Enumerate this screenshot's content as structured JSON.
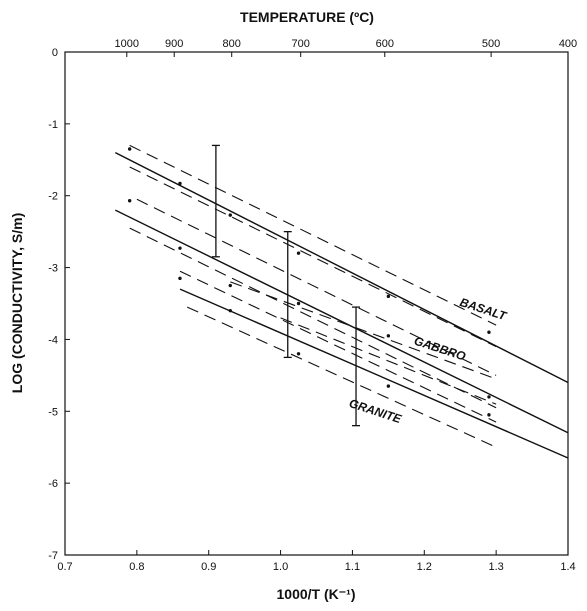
{
  "chart_data": {
    "type": "line",
    "title": "",
    "xlabel": "1000/T (K⁻¹)",
    "ylabel": "LOG (CONDUCTIVITY, S/m)",
    "top_axis_label": "TEMPERATURE (ºC)",
    "xlim": [
      0.7,
      1.4
    ],
    "ylim": [
      -7,
      0
    ],
    "x_ticks": [
      0.7,
      0.8,
      0.9,
      1.0,
      1.1,
      1.2,
      1.3,
      1.4
    ],
    "x_tick_labels": [
      "0.7",
      "0.8",
      "0.9",
      "1.0",
      "1.1",
      "1.2",
      "1.3",
      "1.4"
    ],
    "y_ticks": [
      0,
      -1,
      -2,
      -3,
      -4,
      -5,
      -6,
      -7
    ],
    "y_tick_labels": [
      "0",
      "-1",
      "-2",
      "-3",
      "-4",
      "-5",
      "-6",
      "-7"
    ],
    "top_ticks": [
      {
        "label": "1000",
        "x": 0.786
      },
      {
        "label": "900",
        "x": 0.852
      },
      {
        "label": "800",
        "x": 0.932
      },
      {
        "label": "700",
        "x": 1.028
      },
      {
        "label": "600",
        "x": 1.145
      },
      {
        "label": "500",
        "x": 1.293
      },
      {
        "label": "400",
        "x": 1.486
      }
    ],
    "series": [
      {
        "name": "BASALT",
        "style": "solid",
        "x": [
          0.77,
          1.4
        ],
        "y": [
          -1.4,
          -4.6
        ]
      },
      {
        "name": "GABBRO",
        "style": "solid",
        "x": [
          0.77,
          1.4
        ],
        "y": [
          -2.2,
          -5.3
        ]
      },
      {
        "name": "GRANITE",
        "style": "solid",
        "x": [
          0.86,
          1.4
        ],
        "y": [
          -3.3,
          -5.65
        ]
      },
      {
        "style": "dashed",
        "x": [
          0.79,
          1.3
        ],
        "y": [
          -1.3,
          -3.8
        ]
      },
      {
        "style": "dashed",
        "x": [
          0.79,
          1.3
        ],
        "y": [
          -1.6,
          -4.1
        ]
      },
      {
        "style": "dashed",
        "x": [
          0.8,
          1.3
        ],
        "y": [
          -2.05,
          -4.5
        ]
      },
      {
        "style": "dashed",
        "x": [
          0.79,
          1.3
        ],
        "y": [
          -2.45,
          -4.95
        ]
      },
      {
        "style": "dashed",
        "x": [
          0.86,
          1.3
        ],
        "y": [
          -3.05,
          -5.15
        ]
      },
      {
        "style": "dashed",
        "x": [
          0.87,
          1.3
        ],
        "y": [
          -3.55,
          -5.5
        ]
      },
      {
        "style": "dashed",
        "x": [
          0.93,
          1.3
        ],
        "y": [
          -3.2,
          -4.55
        ]
      },
      {
        "style": "dashed",
        "x": [
          1.0,
          1.3
        ],
        "y": [
          -3.7,
          -4.9
        ]
      }
    ],
    "points": [
      {
        "x": 0.79,
        "y": -1.35
      },
      {
        "x": 0.79,
        "y": -2.07
      },
      {
        "x": 0.86,
        "y": -1.83
      },
      {
        "x": 0.86,
        "y": -2.73
      },
      {
        "x": 0.86,
        "y": -3.15
      },
      {
        "x": 0.93,
        "y": -2.27
      },
      {
        "x": 0.93,
        "y": -3.25
      },
      {
        "x": 0.93,
        "y": -3.6
      },
      {
        "x": 1.025,
        "y": -2.8
      },
      {
        "x": 1.025,
        "y": -3.5
      },
      {
        "x": 1.025,
        "y": -4.2
      },
      {
        "x": 1.15,
        "y": -3.4
      },
      {
        "x": 1.15,
        "y": -3.95
      },
      {
        "x": 1.15,
        "y": -4.65
      },
      {
        "x": 1.29,
        "y": -3.9
      },
      {
        "x": 1.29,
        "y": -4.8
      },
      {
        "x": 1.29,
        "y": -5.05
      }
    ],
    "error_bars": [
      {
        "x": 0.91,
        "low": -2.85,
        "high": -1.3
      },
      {
        "x": 1.01,
        "low": -4.25,
        "high": -2.5
      },
      {
        "x": 1.105,
        "low": -5.2,
        "high": -3.55
      }
    ],
    "annotations": [
      {
        "text": "BASALT",
        "x": 1.28,
        "y": -3.63,
        "angle": 18
      },
      {
        "text": "GABBRO",
        "x": 1.22,
        "y": -4.18,
        "angle": 18
      },
      {
        "text": "GRANITE",
        "x": 1.13,
        "y": -5.05,
        "angle": 18
      }
    ],
    "grid": false
  }
}
